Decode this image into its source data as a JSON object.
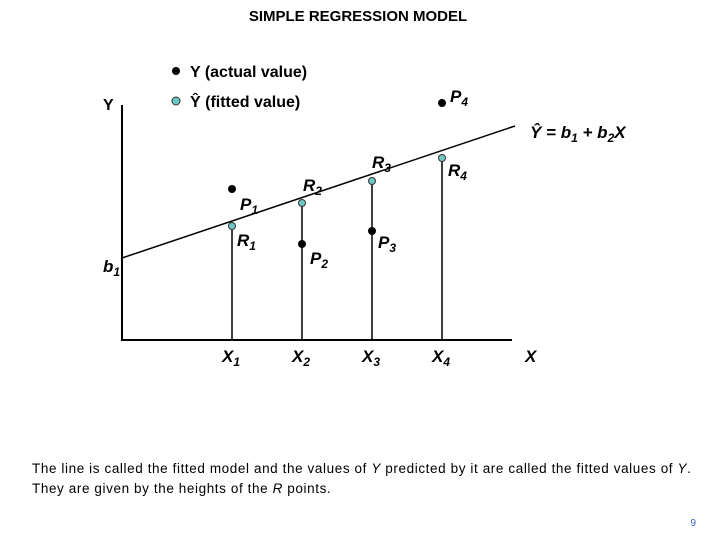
{
  "title": "SIMPLE REGRESSION MODEL",
  "legend": {
    "actual": "Y (actual value)",
    "fitted": "Ŷ (fitted value)"
  },
  "axes": {
    "y_label": "Y",
    "x_label": "X",
    "intercept": {
      "base": "b",
      "sub": "1"
    }
  },
  "equation": [
    "Ŷ = b",
    "1",
    " + b",
    "2",
    "X"
  ],
  "points": [
    {
      "x_label": {
        "base": "X",
        "sub": "1"
      },
      "actual": {
        "base": "P",
        "sub": "1"
      },
      "fitted": {
        "base": "R",
        "sub": "1"
      }
    },
    {
      "x_label": {
        "base": "X",
        "sub": "2"
      },
      "actual": {
        "base": "P",
        "sub": "2"
      },
      "fitted": {
        "base": "R",
        "sub": "2"
      }
    },
    {
      "x_label": {
        "base": "X",
        "sub": "3"
      },
      "actual": {
        "base": "P",
        "sub": "3"
      },
      "fitted": {
        "base": "R",
        "sub": "3"
      }
    },
    {
      "x_label": {
        "base": "X",
        "sub": "4"
      },
      "actual": {
        "base": "P",
        "sub": "4"
      },
      "fitted": {
        "base": "R",
        "sub": "4"
      }
    }
  ],
  "caption": [
    {
      "text": "The line is called the fitted model and the values of ",
      "italic": false
    },
    {
      "text": "Y",
      "italic": true
    },
    {
      "text": " predicted by it are called the fitted values of ",
      "italic": false
    },
    {
      "text": "Y",
      "italic": true
    },
    {
      "text": ".  They are given by the heights of the ",
      "italic": false
    },
    {
      "text": "R",
      "italic": true
    },
    {
      "text": " points.",
      "italic": false
    }
  ],
  "page_number": "9"
}
